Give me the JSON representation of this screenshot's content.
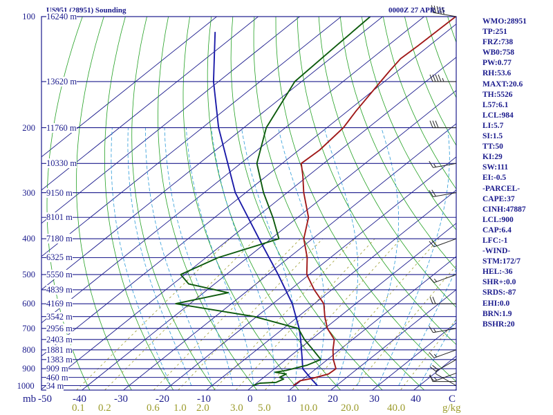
{
  "header": {
    "station": "US951 (28951) Sounding",
    "datetime": "0000Z 27 APR 25"
  },
  "indices": [
    "WMO:28951",
    "TP:251",
    "FRZ:738",
    "WB0:758",
    "PW:0.77",
    "RH:53.6",
    "MAXT:20.6",
    "TH:5526",
    "L57:6.1",
    "LCL:984",
    "LI:5.7",
    "SI:1.5",
    "TT:50",
    "KI:29",
    "SW:111",
    "EI:-0.5",
    "-PARCEL-",
    "CAPE:37",
    "CINH:47887",
    "LCL:900",
    "CAP:6.4",
    "LFC:-1",
    "-WIND-",
    "STM:172/7",
    "HEL:-36",
    "SHR+:0.0",
    "SRDS:-87",
    "EHI:0.0",
    "BRN:1.9",
    "BSHR:20"
  ],
  "axis": {
    "pressure_unit": "mb",
    "mixing_unit": "g/kg",
    "temp_ticks": [
      "-50",
      "-40",
      "-30",
      "-20",
      "-10",
      "0",
      "10",
      "20",
      "30",
      "40",
      "C"
    ],
    "mixing_ticks": [
      "0.1",
      "0.2",
      "0.6",
      "1.0",
      "2.0",
      "3.0",
      "5.0",
      "10.0",
      "20.0",
      "40.0"
    ]
  },
  "colors": {
    "frame": "#1a1a8c",
    "isobar": "#1a1a8c",
    "isotherm": "#1a1a8c",
    "dry_adiabat": "#22a022",
    "moist_adiabat": "#2a9ad8",
    "mixing_ratio": "#9b9b2a",
    "temperature": "#a01818",
    "dewpoint": "#0c5a0c",
    "parcel": "#1a1aa8",
    "wind": "#222222"
  },
  "chart_data": {
    "type": "skew-t",
    "x_range_c": [
      -50,
      40
    ],
    "pressure_levels_mb": [
      100,
      200,
      300,
      400,
      500,
      600,
      700,
      800,
      900,
      1000
    ],
    "pressure_labels": [
      "100",
      "200",
      "300",
      "400",
      "500",
      "600",
      "700",
      "800",
      "900",
      "1000"
    ],
    "heights": [
      {
        "p": 100,
        "label": "16240 m"
      },
      {
        "p": 150,
        "label": "13620 m"
      },
      {
        "p": 200,
        "label": "11760 m"
      },
      {
        "p": 250,
        "label": "10330 m"
      },
      {
        "p": 300,
        "label": "9150 m"
      },
      {
        "p": 350,
        "label": "8101 m"
      },
      {
        "p": 400,
        "label": "7180 m"
      },
      {
        "p": 450,
        "label": "6325 m"
      },
      {
        "p": 500,
        "label": "5550 m"
      },
      {
        "p": 550,
        "label": "4839 m"
      },
      {
        "p": 600,
        "label": "4169 m"
      },
      {
        "p": 650,
        "label": "3542 m"
      },
      {
        "p": 700,
        "label": "2956 m"
      },
      {
        "p": 750,
        "label": "2403 m"
      },
      {
        "p": 800,
        "label": "1881 m"
      },
      {
        "p": 850,
        "label": "1383 m"
      },
      {
        "p": 900,
        "label": "909 m"
      },
      {
        "p": 950,
        "label": "460 m"
      },
      {
        "p": 1000,
        "label": "34 m"
      }
    ],
    "temperature": [
      {
        "p": 1000,
        "t": 9.6
      },
      {
        "p": 970,
        "t": 9.8
      },
      {
        "p": 955,
        "t": 12.1
      },
      {
        "p": 930,
        "t": 14.6
      },
      {
        "p": 900,
        "t": 14.8
      },
      {
        "p": 850,
        "t": 11.4
      },
      {
        "p": 800,
        "t": 8.4
      },
      {
        "p": 750,
        "t": 5.6
      },
      {
        "p": 700,
        "t": 0.6
      },
      {
        "p": 650,
        "t": -3.6
      },
      {
        "p": 600,
        "t": -7.7
      },
      {
        "p": 550,
        "t": -14.2
      },
      {
        "p": 500,
        "t": -20.6
      },
      {
        "p": 450,
        "t": -25.6
      },
      {
        "p": 400,
        "t": -32.1
      },
      {
        "p": 350,
        "t": -37.4
      },
      {
        "p": 300,
        "t": -46.0
      },
      {
        "p": 270,
        "t": -51.3
      },
      {
        "p": 250,
        "t": -55.4
      },
      {
        "p": 230,
        "t": -55.0
      },
      {
        "p": 200,
        "t": -56.0
      },
      {
        "p": 180,
        "t": -58.0
      },
      {
        "p": 150,
        "t": -60.9
      },
      {
        "p": 140,
        "t": -62.0
      },
      {
        "p": 130,
        "t": -63.0
      },
      {
        "p": 120,
        "t": -62.7
      },
      {
        "p": 100,
        "t": -62.4
      }
    ],
    "dewpoint": [
      {
        "p": 1000,
        "td": -0.2
      },
      {
        "p": 985,
        "td": 0.8
      },
      {
        "p": 980,
        "td": 4.5
      },
      {
        "p": 960,
        "td": 5.3
      },
      {
        "p": 950,
        "td": 3.8
      },
      {
        "p": 930,
        "td": 4.4
      },
      {
        "p": 920,
        "td": 1.2
      },
      {
        "p": 910,
        "td": 3.3
      },
      {
        "p": 880,
        "td": 6.8
      },
      {
        "p": 850,
        "td": 8.4
      },
      {
        "p": 800,
        "td": 3.6
      },
      {
        "p": 750,
        "td": -1.6
      },
      {
        "p": 700,
        "td": -6.4
      },
      {
        "p": 650,
        "td": -20.6
      },
      {
        "p": 600,
        "td": -43.4
      },
      {
        "p": 560,
        "td": -34.1
      },
      {
        "p": 530,
        "td": -46.3
      },
      {
        "p": 500,
        "td": -51.0
      },
      {
        "p": 450,
        "td": -47.1
      },
      {
        "p": 400,
        "td": -38.1
      },
      {
        "p": 350,
        "td": -46.0
      },
      {
        "p": 300,
        "td": -55.7
      },
      {
        "p": 250,
        "td": -66.1
      },
      {
        "p": 200,
        "td": -74.6
      },
      {
        "p": 150,
        "td": -81.6
      },
      {
        "p": 120,
        "td": -82.4
      },
      {
        "p": 100,
        "td": -83.0
      }
    ],
    "parcel": [
      {
        "p": 1000,
        "t": 15.4
      },
      {
        "p": 960,
        "t": 12.0
      },
      {
        "p": 900,
        "t": 6.8
      },
      {
        "p": 850,
        "t": 3.9
      },
      {
        "p": 800,
        "t": 0.8
      },
      {
        "p": 750,
        "t": -2.5
      },
      {
        "p": 700,
        "t": -6.2
      },
      {
        "p": 600,
        "t": -15.3
      },
      {
        "p": 500,
        "t": -27.5
      },
      {
        "p": 400,
        "t": -42.9
      },
      {
        "p": 300,
        "t": -62.5
      },
      {
        "p": 200,
        "t": -86.1
      },
      {
        "p": 150,
        "t": -101.2
      },
      {
        "p": 110,
        "t": -115.8
      }
    ],
    "wind_barbs": [
      {
        "p": 1000,
        "dir": 300,
        "spd": 5
      },
      {
        "p": 975,
        "dir": 270,
        "spd": 10
      },
      {
        "p": 925,
        "dir": 250,
        "spd": 15
      },
      {
        "p": 850,
        "dir": 240,
        "spd": 20
      },
      {
        "p": 800,
        "dir": 250,
        "spd": 15
      },
      {
        "p": 700,
        "dir": 260,
        "spd": 15
      },
      {
        "p": 600,
        "dir": 270,
        "spd": 20
      },
      {
        "p": 500,
        "dir": 250,
        "spd": 15
      },
      {
        "p": 400,
        "dir": 250,
        "spd": 20
      },
      {
        "p": 300,
        "dir": 260,
        "spd": 20
      },
      {
        "p": 250,
        "dir": 260,
        "spd": 15
      },
      {
        "p": 200,
        "dir": 270,
        "spd": 30
      },
      {
        "p": 150,
        "dir": 270,
        "spd": 45
      },
      {
        "p": 100,
        "dir": 280,
        "spd": 50
      }
    ]
  }
}
